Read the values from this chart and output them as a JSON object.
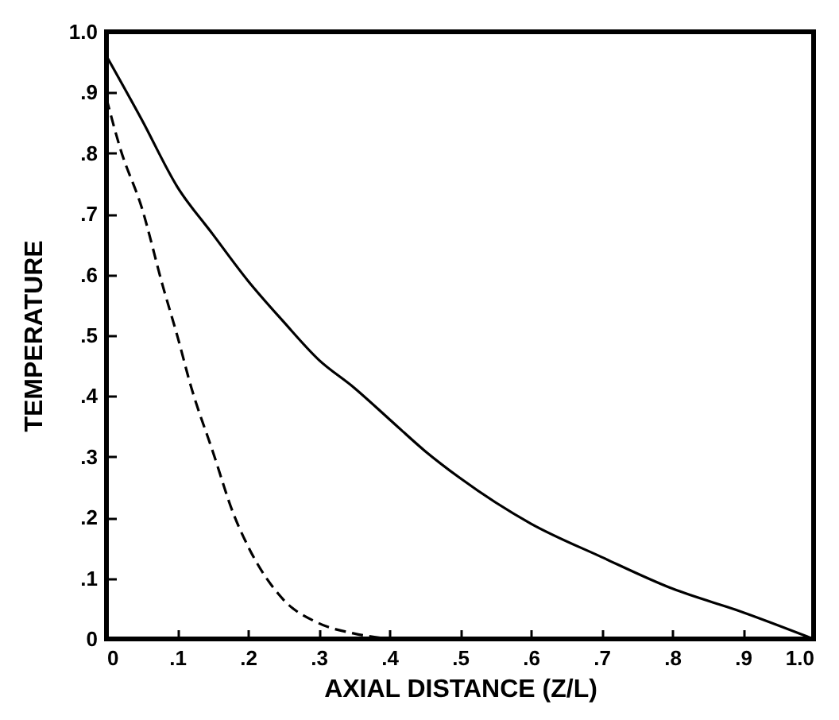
{
  "chart_data": {
    "type": "line",
    "xlabel": "AXIAL DISTANCE (Z/L)",
    "ylabel": "TEMPERATURE",
    "xlim": [
      0,
      1
    ],
    "ylim": [
      0,
      1
    ],
    "xticks": [
      {
        "value": 0,
        "label": "0"
      },
      {
        "value": 0.1,
        "label": ".1"
      },
      {
        "value": 0.2,
        "label": ".2"
      },
      {
        "value": 0.3,
        "label": ".3"
      },
      {
        "value": 0.4,
        "label": ".4"
      },
      {
        "value": 0.5,
        "label": ".5"
      },
      {
        "value": 0.6,
        "label": ".6"
      },
      {
        "value": 0.7,
        "label": ".7"
      },
      {
        "value": 0.8,
        "label": ".8"
      },
      {
        "value": 0.9,
        "label": ".9"
      },
      {
        "value": 1,
        "label": "1.0"
      }
    ],
    "yticks": [
      {
        "value": 0,
        "label": "0"
      },
      {
        "value": 0.1,
        "label": ".1"
      },
      {
        "value": 0.2,
        "label": ".2"
      },
      {
        "value": 0.3,
        "label": ".3"
      },
      {
        "value": 0.4,
        "label": ".4"
      },
      {
        "value": 0.5,
        "label": ".5"
      },
      {
        "value": 0.6,
        "label": ".6"
      },
      {
        "value": 0.7,
        "label": ".7"
      },
      {
        "value": 0.8,
        "label": ".8"
      },
      {
        "value": 0.9,
        "label": ".9"
      },
      {
        "value": 1,
        "label": "1.0"
      }
    ],
    "grid": false,
    "series": [
      {
        "color": "#000000",
        "line_style": "solid",
        "x": [
          0,
          0.05,
          0.1,
          0.15,
          0.2,
          0.25,
          0.3,
          0.35,
          0.4,
          0.45,
          0.5,
          0.6,
          0.7,
          0.8,
          0.9,
          1.0
        ],
        "values": [
          0.96,
          0.855,
          0.745,
          0.667,
          0.59,
          0.523,
          0.46,
          0.414,
          0.362,
          0.31,
          0.265,
          0.19,
          0.135,
          0.083,
          0.044,
          0.0
        ]
      },
      {
        "color": "#000000",
        "line_style": "dashed",
        "x": [
          0,
          0.02,
          0.05,
          0.08,
          0.1,
          0.12,
          0.15,
          0.18,
          0.2,
          0.25,
          0.3,
          0.35,
          0.4
        ],
        "values": [
          0.89,
          0.806,
          0.71,
          0.58,
          0.5,
          0.414,
          0.31,
          0.205,
          0.153,
          0.065,
          0.026,
          0.009,
          0.0
        ]
      }
    ]
  }
}
